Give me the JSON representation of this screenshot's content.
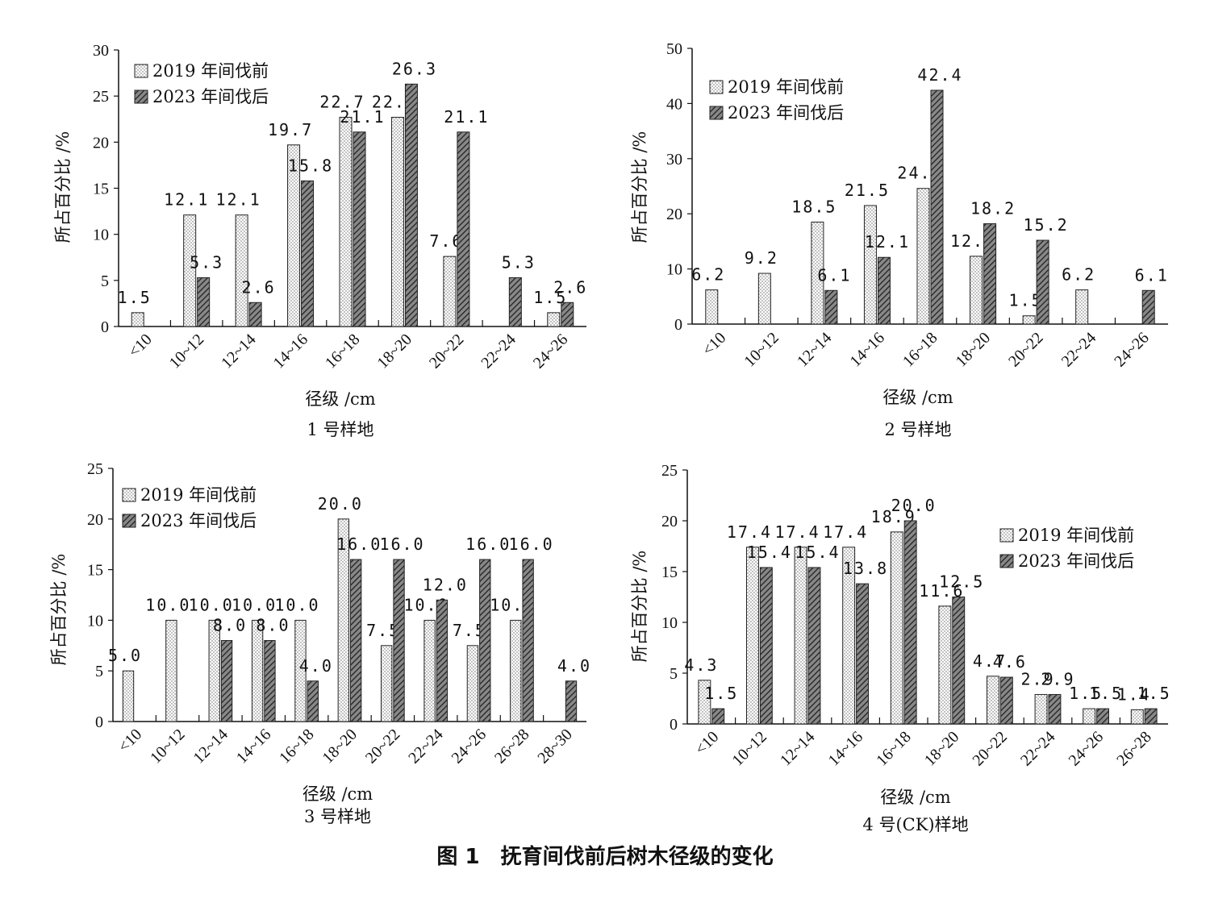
{
  "figure_caption": "图 1　抚育间伐前后树木径级的变化",
  "chart_data": [
    {
      "type": "bar",
      "subtitle": "1 号样地",
      "xlabel": "径级 /cm",
      "ylabel": "所占百分比 /%",
      "ylim": [
        0,
        30
      ],
      "yticks": [
        0,
        5,
        10,
        15,
        20,
        25,
        30
      ],
      "categories": [
        "<10",
        "10~12",
        "12~14",
        "14~16",
        "16~18",
        "18~20",
        "20~22",
        "22~24",
        "24~26"
      ],
      "series": [
        {
          "name": "2019 年间伐前",
          "values": [
            1.5,
            12.1,
            12.1,
            19.7,
            22.7,
            22.7,
            7.6,
            null,
            1.5
          ]
        },
        {
          "name": "2023 年间伐后",
          "values": [
            null,
            5.3,
            2.6,
            15.8,
            21.1,
            26.3,
            21.1,
            5.3,
            2.6
          ]
        }
      ],
      "legend": "top-left"
    },
    {
      "type": "bar",
      "subtitle": "2 号样地",
      "xlabel": "径级 /cm",
      "ylabel": "所占百分比 /%",
      "ylim": [
        0,
        50
      ],
      "yticks": [
        0,
        10,
        20,
        30,
        40,
        50
      ],
      "categories": [
        "<10",
        "10~12",
        "12~14",
        "14~16",
        "16~18",
        "18~20",
        "20~22",
        "22~24",
        "24~26"
      ],
      "series": [
        {
          "name": "2019 年间伐前",
          "values": [
            6.2,
            9.2,
            18.5,
            21.5,
            24.6,
            12.3,
            1.5,
            6.2,
            null
          ]
        },
        {
          "name": "2023 年间伐后",
          "values": [
            null,
            null,
            6.1,
            12.1,
            42.4,
            18.2,
            15.2,
            null,
            6.1
          ]
        }
      ],
      "legend": "top-left"
    },
    {
      "type": "bar",
      "subtitle": "3 号样地",
      "xlabel": "径级 /cm",
      "ylabel": "所占百分比 /%",
      "ylim": [
        0,
        25
      ],
      "yticks": [
        0,
        5,
        10,
        15,
        20,
        25
      ],
      "categories": [
        "<10",
        "10~12",
        "12~14",
        "14~16",
        "16~18",
        "18~20",
        "20~22",
        "22~24",
        "24~26",
        "26~28",
        "28~30"
      ],
      "series": [
        {
          "name": "2019 年间伐前",
          "values": [
            5.0,
            10.0,
            10.0,
            10.0,
            10.0,
            20.0,
            7.5,
            10.0,
            7.5,
            10.0,
            null
          ]
        },
        {
          "name": "2023 年间伐后",
          "values": [
            null,
            null,
            8.0,
            8.0,
            4.0,
            16.0,
            16.0,
            12.0,
            16.0,
            16.0,
            4.0
          ]
        }
      ],
      "legend": "top-left"
    },
    {
      "type": "bar",
      "subtitle": "4 号(CK)样地",
      "xlabel": "径级 /cm",
      "ylabel": "所占百分比 /%",
      "ylim": [
        0,
        25
      ],
      "yticks": [
        0,
        5,
        10,
        15,
        20,
        25
      ],
      "categories": [
        "<10",
        "10~12",
        "12~14",
        "14~16",
        "16~18",
        "18~20",
        "20~22",
        "22~24",
        "24~26",
        "26~28"
      ],
      "series": [
        {
          "name": "2019 年间伐前",
          "values": [
            4.3,
            17.4,
            17.4,
            17.4,
            18.9,
            11.6,
            4.7,
            2.9,
            1.5,
            1.4
          ]
        },
        {
          "name": "2023 年间伐后",
          "values": [
            1.5,
            15.4,
            15.4,
            13.8,
            20.0,
            12.5,
            4.6,
            2.9,
            1.5,
            1.5
          ]
        }
      ],
      "legend": "top-right"
    }
  ]
}
